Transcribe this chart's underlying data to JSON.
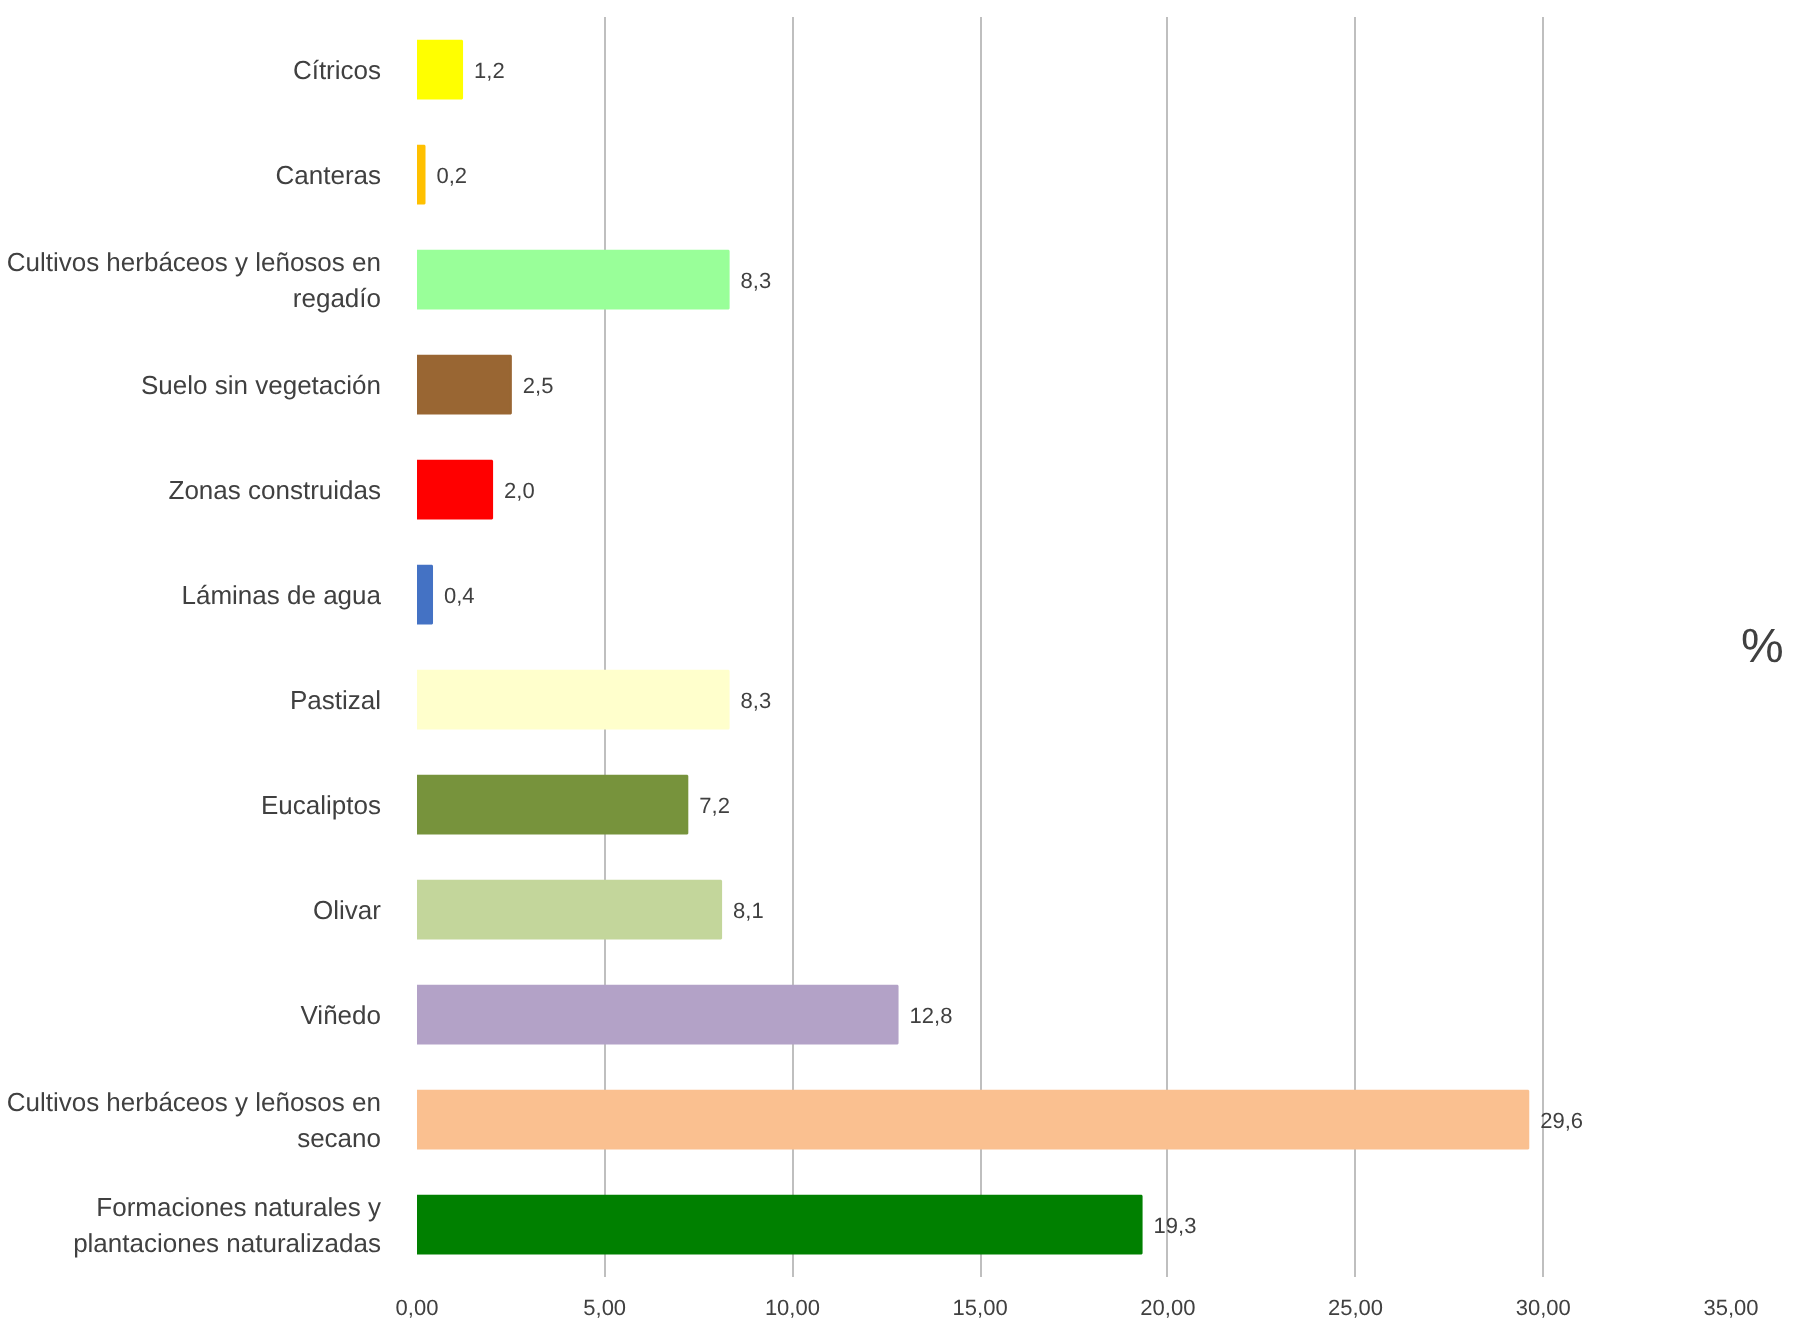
{
  "chart_data": {
    "type": "bar",
    "orientation": "horizontal",
    "xlabel": "%",
    "categories": [
      "Cítricos",
      "Canteras",
      "Cultivos herbáceos y leñosos en regadío",
      "Suelo sin vegetación",
      "Zonas construidas",
      "Láminas de agua",
      "Pastizal",
      "Eucaliptos",
      "Olivar",
      "Viñedo",
      "Cultivos herbáceos y leñosos en secano",
      "Formaciones naturales y plantaciones naturalizadas"
    ],
    "values": [
      1.2,
      0.2,
      8.3,
      2.5,
      2.0,
      0.4,
      8.3,
      7.2,
      8.1,
      12.8,
      29.6,
      19.3
    ],
    "value_labels": [
      "1,2",
      "0,2",
      "8,3",
      "2,5",
      "2,0",
      "0,4",
      "8,3",
      "7,2",
      "8,1",
      "12,8",
      "29,6",
      "19,3"
    ],
    "colors": [
      "#ffff00",
      "#ffc000",
      "#99ff99",
      "#996633",
      "#ff0000",
      "#4472c4",
      "#ffffcc",
      "#77933c",
      "#c3d69b",
      "#b3a2c7",
      "#fac090",
      "#008000"
    ],
    "xlim": [
      0,
      35
    ],
    "xticks": [
      {
        "value": 0,
        "label": "0,00"
      },
      {
        "value": 5,
        "label": "5,00"
      },
      {
        "value": 10,
        "label": "10,00"
      },
      {
        "value": 15,
        "label": "15,00"
      },
      {
        "value": 20,
        "label": "20,00"
      },
      {
        "value": 25,
        "label": "25,00"
      },
      {
        "value": 30,
        "label": "30,00"
      },
      {
        "value": 35,
        "label": "35,00"
      }
    ],
    "grid": "x"
  }
}
